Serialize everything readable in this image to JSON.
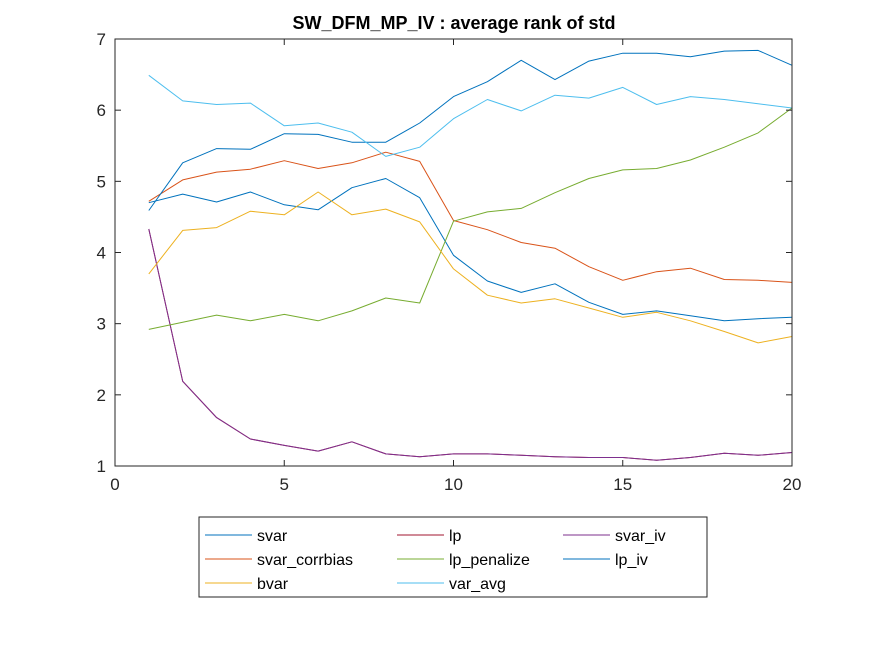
{
  "chart_data": {
    "type": "line",
    "title": "SW_DFM_MP_IV : average rank of std",
    "xlabel": "",
    "ylabel": "",
    "xlim": [
      0,
      20
    ],
    "ylim": [
      1,
      7
    ],
    "xticks": [
      0,
      5,
      10,
      15,
      20
    ],
    "yticks": [
      1,
      2,
      3,
      4,
      5,
      6,
      7
    ],
    "grid": false,
    "legend_position": "bottom-center",
    "legend_columns": 3,
    "x": [
      1,
      2,
      3,
      4,
      5,
      6,
      7,
      8,
      9,
      10,
      11,
      12,
      13,
      14,
      15,
      16,
      17,
      18,
      19,
      20
    ],
    "series": [
      {
        "name": "svar",
        "color": "#0072BD",
        "values": [
          4.7,
          4.82,
          4.71,
          4.85,
          4.67,
          4.6,
          4.91,
          5.04,
          4.77,
          3.96,
          3.6,
          3.44,
          3.56,
          3.3,
          3.13,
          3.18,
          3.11,
          3.04,
          3.07,
          3.09
        ]
      },
      {
        "name": "lp",
        "color": "#A2142F",
        "values": [
          4.33,
          2.19,
          1.68,
          1.38,
          1.29,
          1.21,
          1.34,
          1.17,
          1.13,
          1.17,
          1.17,
          1.15,
          1.13,
          1.12,
          1.12,
          1.08,
          1.12,
          1.18,
          1.15,
          1.19
        ]
      },
      {
        "name": "svar_iv",
        "color": "#7E2F8E",
        "values": [
          4.33,
          2.19,
          1.68,
          1.38,
          1.29,
          1.21,
          1.34,
          1.17,
          1.13,
          1.17,
          1.17,
          1.15,
          1.13,
          1.12,
          1.12,
          1.08,
          1.12,
          1.18,
          1.15,
          1.19
        ]
      },
      {
        "name": "svar_corrbias",
        "color": "#D95319",
        "values": [
          4.72,
          5.02,
          5.13,
          5.17,
          5.29,
          5.18,
          5.26,
          5.41,
          5.28,
          4.45,
          4.32,
          4.14,
          4.06,
          3.8,
          3.61,
          3.73,
          3.78,
          3.62,
          3.61,
          3.58
        ]
      },
      {
        "name": "lp_penalize",
        "color": "#77AC30",
        "values": [
          2.92,
          3.02,
          3.12,
          3.04,
          3.13,
          3.04,
          3.18,
          3.36,
          3.29,
          4.44,
          4.57,
          4.62,
          4.84,
          5.04,
          5.16,
          5.18,
          5.3,
          5.48,
          5.68,
          6.03
        ]
      },
      {
        "name": "lp_iv",
        "color": "#0072BD",
        "values": [
          4.59,
          5.26,
          5.46,
          5.45,
          5.67,
          5.66,
          5.55,
          5.55,
          5.82,
          6.19,
          6.4,
          6.7,
          6.43,
          6.69,
          6.8,
          6.8,
          6.75,
          6.83,
          6.84,
          6.63
        ]
      },
      {
        "name": "bvar",
        "color": "#EDB120",
        "values": [
          3.7,
          4.31,
          4.35,
          4.58,
          4.53,
          4.85,
          4.53,
          4.61,
          4.43,
          3.77,
          3.4,
          3.29,
          3.35,
          3.22,
          3.09,
          3.16,
          3.04,
          2.89,
          2.73,
          2.82
        ]
      },
      {
        "name": "var_avg",
        "color": "#4DBEEE",
        "values": [
          6.49,
          6.13,
          6.08,
          6.1,
          5.78,
          5.82,
          5.69,
          5.35,
          5.48,
          5.88,
          6.15,
          5.99,
          6.21,
          6.17,
          6.32,
          6.08,
          6.19,
          6.15,
          6.09,
          6.03
        ]
      }
    ]
  }
}
